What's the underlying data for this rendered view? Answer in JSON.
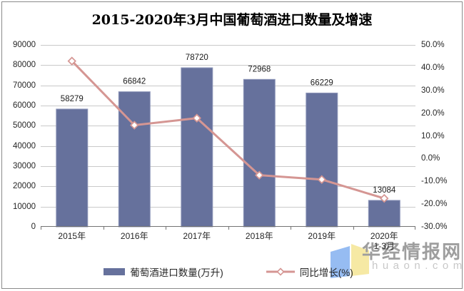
{
  "title": "2015-2020年3月中国葡萄酒进口数量及增速",
  "chart_data": {
    "type": "combo-bar-line",
    "categories": [
      "2015年",
      "2016年",
      "2017年",
      "2018年",
      "2019年",
      "2020年\n1-3月"
    ],
    "series": [
      {
        "name": "葡萄酒进口数量(万升)",
        "type": "bar",
        "axis": "left",
        "color": "#66719c",
        "values": [
          58279,
          66842,
          78720,
          72968,
          66229,
          13084
        ]
      },
      {
        "name": "同比增长(%)",
        "type": "line",
        "axis": "right",
        "color": "#d59693",
        "marker": "open-diamond",
        "values": [
          42.9,
          14.7,
          17.8,
          -7.3,
          -9.2,
          -17.5
        ]
      }
    ],
    "left_axis": {
      "min": 0,
      "max": 90000,
      "step": 10000,
      "tick_labels": [
        "90000",
        "80000",
        "70000",
        "60000",
        "50000",
        "40000",
        "30000",
        "20000",
        "10000",
        "0"
      ]
    },
    "right_axis": {
      "min": -30,
      "max": 50,
      "step": 10,
      "tick_labels": [
        "50.0%",
        "40.0%",
        "30.0%",
        "20.0%",
        "10.0%",
        "0.0%",
        "-10.0%",
        "-20.0%",
        "-30.0%"
      ]
    },
    "grid": true,
    "legend_position": "bottom"
  },
  "legend": {
    "bar_label": "葡萄酒进口数量(万升)",
    "line_label": "同比增长(%)"
  },
  "watermark": {
    "brand": "华经情报网",
    "domain": "huaon.com"
  },
  "colors": {
    "bar": "#66719c",
    "bar_border": "#8e97ba",
    "line": "#d59693",
    "marker_fill": "#ffffff",
    "grid": "#c9c9c9",
    "axis": "#737373",
    "tick_text": "#262626",
    "label_text": "#1a1a1a",
    "watermark_text": "#9e9e9e",
    "watermark_domain": "#c8c8c8",
    "logo_blue": "#96bcf2",
    "logo_yellow": "#f6e9a4"
  }
}
